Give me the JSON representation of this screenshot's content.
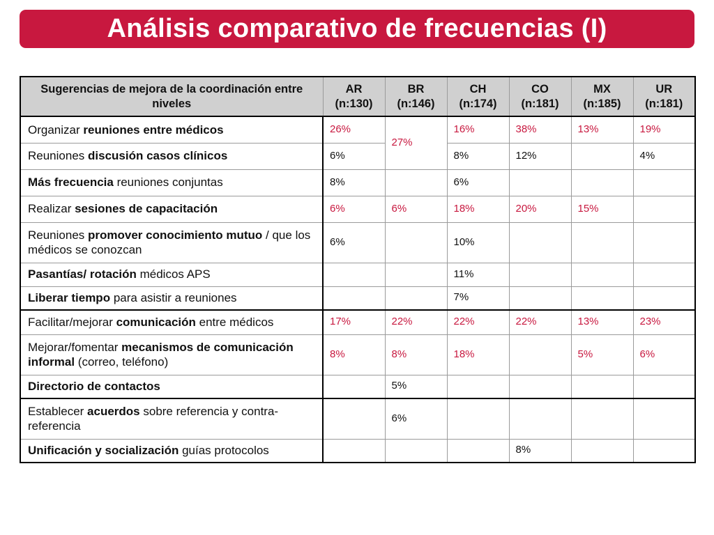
{
  "slide": {
    "title": "Análisis comparativo de frecuencias (I)",
    "accent_color": "#c8183f",
    "highlight_text_color": "#c8183f",
    "header_bg": "#d0d0d0"
  },
  "table": {
    "header": {
      "label": "Sugerencias de mejora de la coordinación entre niveles",
      "columns": [
        {
          "code": "AR",
          "n": "(n:130)"
        },
        {
          "code": "BR",
          "n": "(n:146)"
        },
        {
          "code": "CH",
          "n": "(n:174)"
        },
        {
          "code": "CO",
          "n": "(n:181)"
        },
        {
          "code": "MX",
          "n": "(n:185)"
        },
        {
          "code": "UR",
          "n": "(n:181)"
        }
      ]
    },
    "rows": [
      {
        "label": [
          {
            "t": "Organizar "
          },
          {
            "t": "reuniones entre médicos",
            "b": true
          }
        ],
        "values": {
          "AR": "26%",
          "BR": "27%",
          "CH": "16%",
          "CO": "38%",
          "MX": "13%",
          "UR": "19%"
        },
        "highlighted": true
      },
      {
        "label": [
          {
            "t": "Reuniones "
          },
          {
            "t": "discusión casos clínicos",
            "b": true
          }
        ],
        "values": {
          "AR": "6%",
          "BR": "",
          "CH": "8%",
          "CO": "12%",
          "MX": "",
          "UR": "4%"
        },
        "highlighted": false
      },
      {
        "label": [
          {
            "t": "Más frecuencia",
            "b": true
          },
          {
            "t": " reuniones conjuntas"
          }
        ],
        "values": {
          "AR": "8%",
          "BR": "",
          "CH": "6%",
          "CO": "",
          "MX": "",
          "UR": ""
        },
        "highlighted": false
      },
      {
        "label": [
          {
            "t": "Realizar "
          },
          {
            "t": "sesiones de capacitación",
            "b": true
          }
        ],
        "values": {
          "AR": "6%",
          "BR": "6%",
          "CH": "18%",
          "CO": "20%",
          "MX": "15%",
          "UR": ""
        },
        "highlighted": true
      },
      {
        "label": [
          {
            "t": "Reuniones "
          },
          {
            "t": "promover conocimiento mutuo",
            "b": true
          },
          {
            "t": " / que los médicos se conozcan"
          }
        ],
        "values": {
          "AR": "6%",
          "BR": "",
          "CH": "10%",
          "CO": "",
          "MX": "",
          "UR": ""
        },
        "highlighted": false
      },
      {
        "label": [
          {
            "t": "Pasantías/ rotación",
            "b": true
          },
          {
            "t": " médicos APS"
          }
        ],
        "values": {
          "AR": "",
          "BR": "",
          "CH": "11%",
          "CO": "",
          "MX": "",
          "UR": ""
        },
        "highlighted": false
      },
      {
        "label": [
          {
            "t": "Liberar tiempo",
            "b": true
          },
          {
            "t": " para asistir a reuniones"
          }
        ],
        "values": {
          "AR": "",
          "BR": "",
          "CH": "7%",
          "CO": "",
          "MX": "",
          "UR": ""
        },
        "highlighted": false
      },
      {
        "label": [
          {
            "t": "Facilitar/mejorar "
          },
          {
            "t": "comunicación",
            "b": true
          },
          {
            "t": " entre médicos"
          }
        ],
        "values": {
          "AR": "17%",
          "BR": "22%",
          "CH": "22%",
          "CO": "22%",
          "MX": "13%",
          "UR": "23%"
        },
        "highlighted": true
      },
      {
        "label": [
          {
            "t": "Mejorar/fomentar "
          },
          {
            "t": "mecanismos de comunicación informal",
            "b": true
          },
          {
            "t": " (correo, teléfono)"
          }
        ],
        "values": {
          "AR": "8%",
          "BR": "8%",
          "CH": "18%",
          "CO": "",
          "MX": "5%",
          "UR": "6%"
        },
        "highlighted": true
      },
      {
        "label": [
          {
            "t": "Directorio de contactos",
            "b": true
          }
        ],
        "values": {
          "AR": "",
          "BR": "5%",
          "CH": "",
          "CO": "",
          "MX": "",
          "UR": ""
        },
        "highlighted": false
      },
      {
        "label": [
          {
            "t": "Establecer "
          },
          {
            "t": "acuerdos",
            "b": true
          },
          {
            "t": " sobre referencia y contra-referencia"
          }
        ],
        "values": {
          "AR": "",
          "BR": "6%",
          "CH": "",
          "CO": "",
          "MX": "",
          "UR": ""
        },
        "highlighted": false
      },
      {
        "label": [
          {
            "t": "Unificación y socialización",
            "b": true
          },
          {
            "t": " guías protocolos"
          }
        ],
        "values": {
          "AR": "",
          "BR": "",
          "CH": "",
          "CO": "8%",
          "MX": "",
          "UR": ""
        },
        "highlighted": false
      }
    ]
  }
}
